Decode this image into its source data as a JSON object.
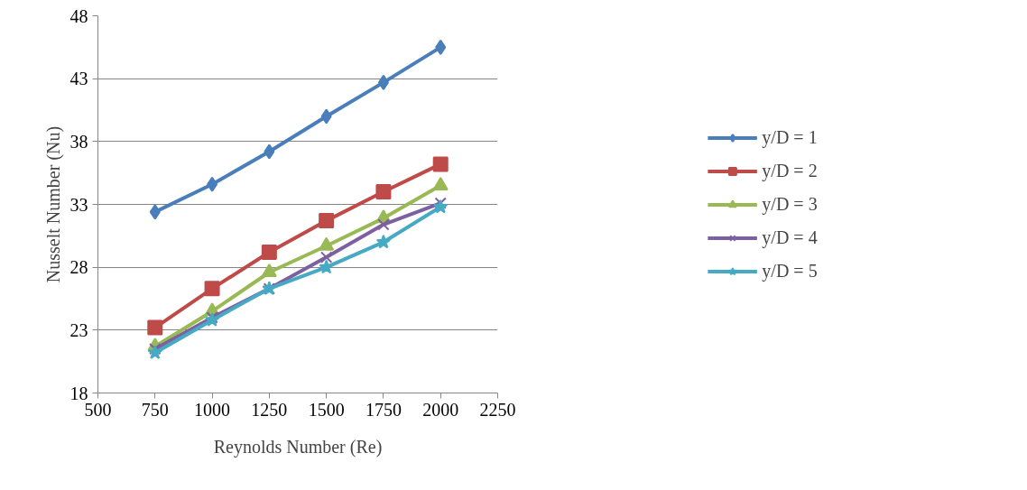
{
  "chart_data": {
    "type": "line",
    "xlabel": "Reynolds Number (Re)",
    "ylabel": "Nusselt Number (Nu)",
    "x": [
      750,
      1000,
      1250,
      1500,
      1750,
      2000
    ],
    "xlim": [
      500,
      2250
    ],
    "xticks": [
      500,
      750,
      1000,
      1250,
      1500,
      1750,
      2000,
      2250
    ],
    "ylim": [
      18,
      48
    ],
    "yticks": [
      18,
      23,
      28,
      33,
      38,
      43,
      48
    ],
    "grid": "y",
    "legend": "right",
    "line_style": "solid",
    "series": [
      {
        "name": "y/D = 1",
        "color": "#4a7ebb",
        "marker": "diamond",
        "values": [
          32.4,
          34.6,
          37.2,
          40.0,
          42.7,
          45.5
        ]
      },
      {
        "name": "y/D = 2",
        "color": "#be4b48",
        "marker": "square",
        "values": [
          23.2,
          26.3,
          29.2,
          31.7,
          34.0,
          36.2
        ]
      },
      {
        "name": "y/D = 3",
        "color": "#98b954",
        "marker": "triangle",
        "values": [
          21.7,
          24.5,
          27.6,
          29.7,
          31.9,
          34.5
        ]
      },
      {
        "name": "y/D = 4",
        "color": "#7d60a0",
        "marker": "cross",
        "values": [
          21.5,
          24.0,
          26.3,
          28.8,
          31.4,
          33.1
        ]
      },
      {
        "name": "y/D = 5",
        "color": "#46aac5",
        "marker": "star",
        "values": [
          21.2,
          23.8,
          26.3,
          28.0,
          30.0,
          32.8
        ]
      }
    ]
  }
}
